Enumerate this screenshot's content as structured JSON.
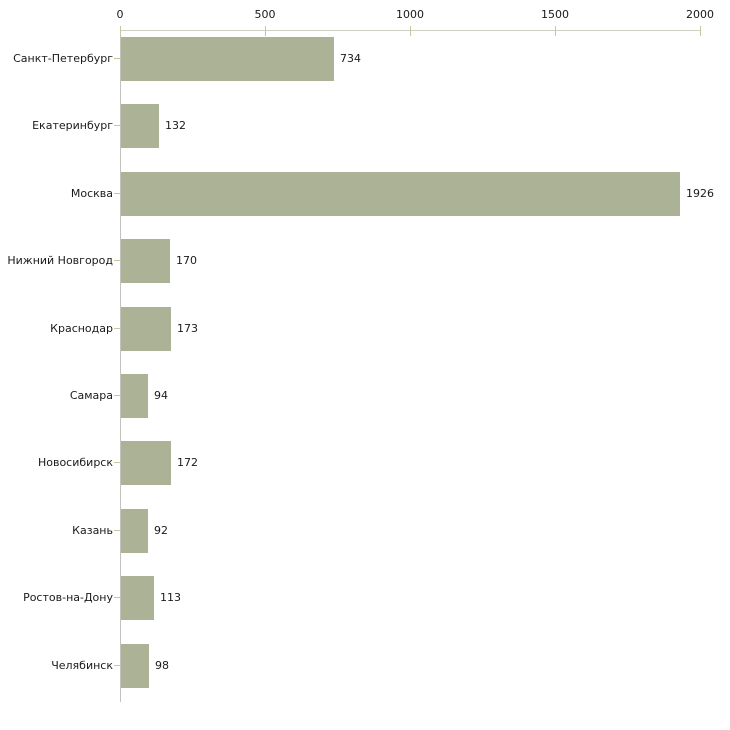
{
  "chart_data": {
    "type": "bar",
    "orientation": "horizontal",
    "title": "",
    "categories": [
      "Санкт-Петербург",
      "Екатеринбург",
      "Москва",
      "Нижний Новгород",
      "Краснодар",
      "Самара",
      "Новосибирск",
      "Казань",
      "Ростов-на-Дону",
      "Челябинск"
    ],
    "values": [
      734,
      132,
      1926,
      170,
      173,
      94,
      172,
      92,
      113,
      98
    ],
    "value_labels": [
      "734",
      "132",
      "1926",
      "170",
      "173",
      "94",
      "172",
      "92",
      "113",
      "98"
    ],
    "x_axis": {
      "position": "top",
      "range": [
        0,
        2000
      ],
      "ticks": [
        0,
        500,
        1000,
        1500,
        2000
      ],
      "tick_labels": [
        "0",
        "500",
        "1000",
        "1500",
        "2000"
      ]
    },
    "grid": false,
    "legend": false,
    "colors": {
      "bar": "#acb296",
      "axis_line": "#cfcfc8",
      "tick_mark": "#c5c79c",
      "text": "#1a1a1a",
      "background": "#ffffff"
    }
  }
}
